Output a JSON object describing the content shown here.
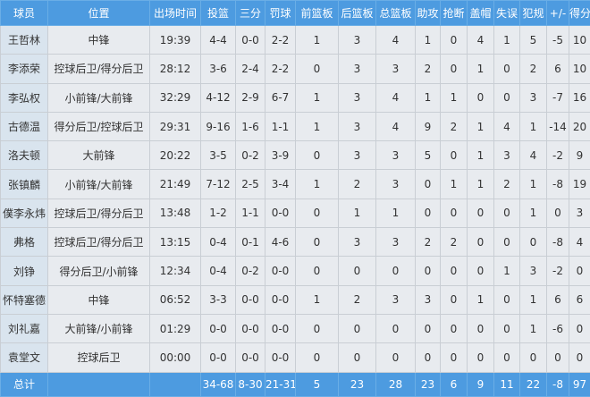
{
  "headers": [
    "球员",
    "位置",
    "出场时间",
    "投篮",
    "三分",
    "罚球",
    "前篮板",
    "后篮板",
    "总篮板",
    "助攻",
    "抢断",
    "盖帽",
    "失误",
    "犯规",
    "+/-",
    "得分"
  ],
  "rows": [
    [
      "王哲林",
      "中锋",
      "19:39",
      "4-4",
      "0-0",
      "2-2",
      "1",
      "3",
      "4",
      "1",
      "0",
      "4",
      "1",
      "5",
      "-5",
      "10"
    ],
    [
      "李添荣",
      "控球后卫/得分后卫",
      "28:12",
      "3-6",
      "2-4",
      "2-2",
      "0",
      "3",
      "3",
      "2",
      "0",
      "1",
      "0",
      "2",
      "6",
      "10"
    ],
    [
      "李弘权",
      "小前锋/大前锋",
      "32:29",
      "4-12",
      "2-9",
      "6-7",
      "1",
      "3",
      "4",
      "1",
      "1",
      "0",
      "0",
      "3",
      "-7",
      "16"
    ],
    [
      "古德温",
      "得分后卫/控球后卫",
      "29:31",
      "9-16",
      "1-6",
      "1-1",
      "1",
      "3",
      "4",
      "9",
      "2",
      "1",
      "4",
      "1",
      "-14",
      "20"
    ],
    [
      "洛夫顿",
      "大前锋",
      "20:22",
      "3-5",
      "0-2",
      "3-9",
      "0",
      "3",
      "3",
      "5",
      "0",
      "1",
      "3",
      "4",
      "-2",
      "9"
    ],
    [
      "张镇麟",
      "小前锋/大前锋",
      "21:49",
      "7-12",
      "2-5",
      "3-4",
      "1",
      "2",
      "3",
      "0",
      "1",
      "1",
      "2",
      "1",
      "-8",
      "19"
    ],
    [
      "僕李永炜",
      "控球后卫/得分后卫",
      "13:48",
      "1-2",
      "1-1",
      "0-0",
      "0",
      "1",
      "1",
      "0",
      "0",
      "0",
      "0",
      "1",
      "0",
      "3"
    ],
    [
      "弗格",
      "控球后卫/得分后卫",
      "13:15",
      "0-4",
      "0-1",
      "4-6",
      "0",
      "3",
      "3",
      "2",
      "2",
      "0",
      "0",
      "0",
      "-8",
      "4"
    ],
    [
      "刘铮",
      "得分后卫/小前锋",
      "12:34",
      "0-4",
      "0-2",
      "0-0",
      "0",
      "0",
      "0",
      "0",
      "0",
      "0",
      "1",
      "3",
      "-2",
      "0"
    ],
    [
      "怀特塞德",
      "中锋",
      "06:52",
      "3-3",
      "0-0",
      "0-0",
      "1",
      "2",
      "3",
      "3",
      "0",
      "1",
      "0",
      "1",
      "6",
      "6"
    ],
    [
      "刘礼嘉",
      "大前锋/小前锋",
      "01:29",
      "0-0",
      "0-0",
      "0-0",
      "0",
      "0",
      "0",
      "0",
      "0",
      "0",
      "0",
      "1",
      "-6",
      "0"
    ],
    [
      "袁堂文",
      "控球后卫",
      "00:00",
      "0-0",
      "0-0",
      "0-0",
      "0",
      "0",
      "0",
      "0",
      "0",
      "0",
      "0",
      "0",
      "0",
      "0"
    ]
  ],
  "totals": [
    "总计",
    "",
    "",
    "34-68",
    "8-30",
    "21-31",
    "5",
    "23",
    "28",
    "23",
    "6",
    "9",
    "11",
    "22",
    "-8",
    "97"
  ]
}
